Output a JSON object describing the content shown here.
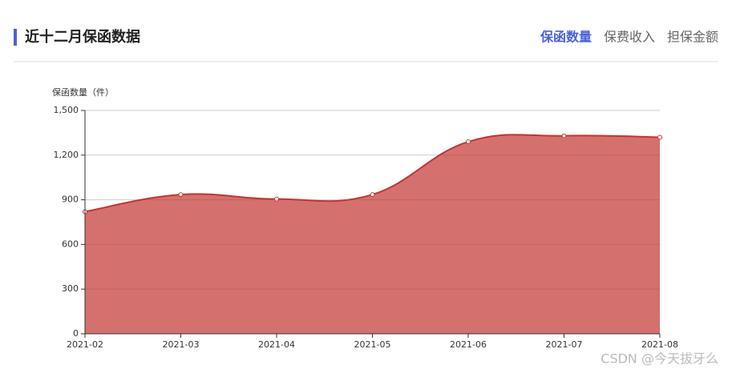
{
  "header": {
    "title": "近十二月保函数据",
    "tabs": [
      "保函数量",
      "保费收入",
      "担保金额"
    ],
    "active_tab": 0
  },
  "chart_data": {
    "type": "area",
    "y_axis_label": "保函数量（件）",
    "categories": [
      "2021-02",
      "2021-03",
      "2021-04",
      "2021-05",
      "2021-06",
      "2021-07",
      "2021-08"
    ],
    "series": [
      {
        "name": "保函数量",
        "color": "#c23531",
        "values": [
          820,
          935,
          905,
          935,
          1290,
          1330,
          1320
        ]
      }
    ],
    "ylim": [
      0,
      1500
    ],
    "yticks": [
      0,
      300,
      600,
      900,
      {
        "value": 1200,
        "label": "1,200"
      },
      {
        "value": 1500,
        "label": "1,500"
      }
    ],
    "grid": true,
    "smooth": true
  },
  "watermark": "CSDN @今天拔牙么"
}
